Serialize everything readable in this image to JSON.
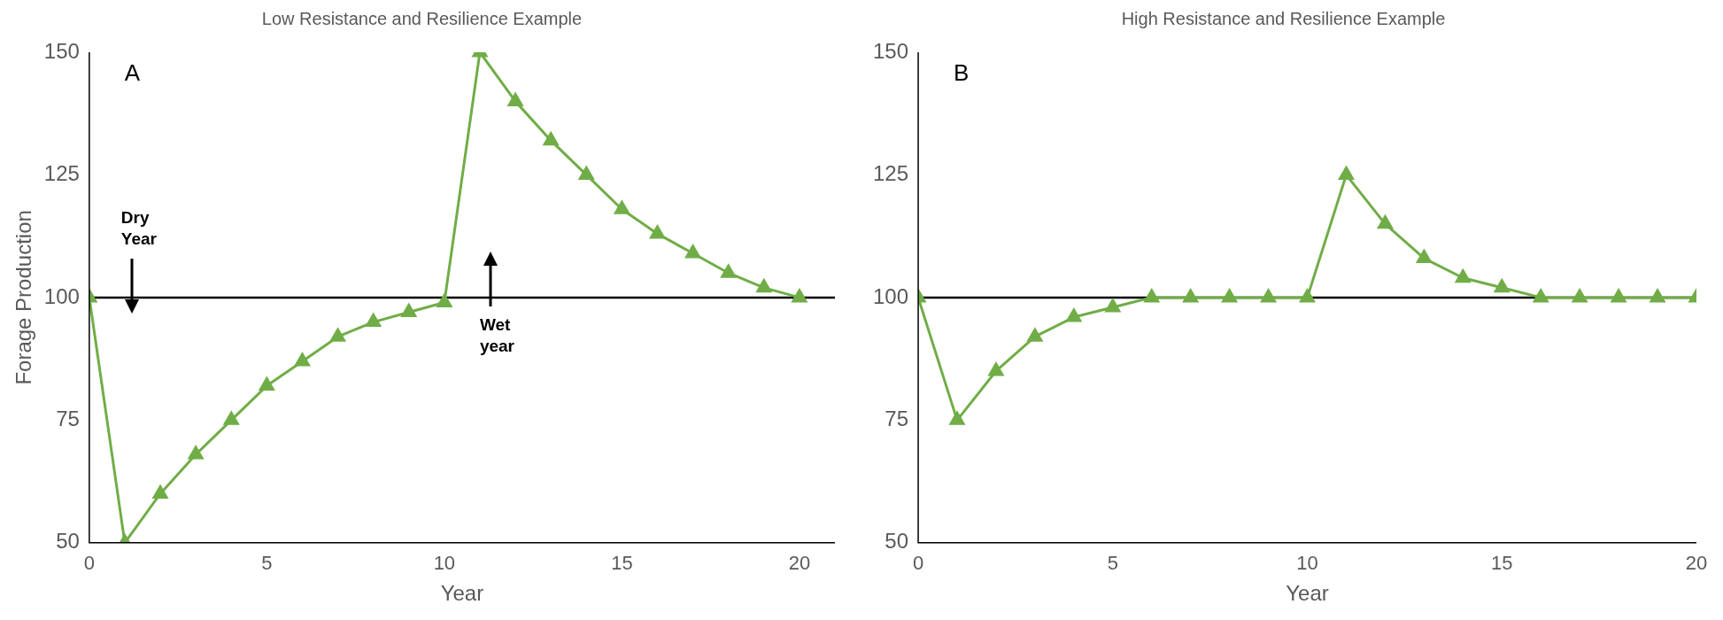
{
  "chart_data": [
    {
      "type": "line",
      "title": "Low Resistance and Resilience Example",
      "xlabel": "Year",
      "ylabel": "Forage Production",
      "x": [
        0,
        1,
        2,
        3,
        4,
        5,
        6,
        7,
        8,
        9,
        10,
        11,
        12,
        13,
        14,
        15,
        16,
        17,
        18,
        19,
        20
      ],
      "series": [
        {
          "color": "#70ad47",
          "values": [
            100,
            50,
            60,
            68,
            75,
            82,
            87,
            92,
            95,
            97,
            99,
            150,
            140,
            132,
            125,
            118,
            113,
            109,
            105,
            102,
            100
          ]
        }
      ],
      "xlim": [
        0,
        21
      ],
      "xticks": [
        0,
        5,
        10,
        15,
        20
      ],
      "ylim": [
        50,
        150
      ],
      "yticks": [
        50,
        75,
        100,
        125,
        150
      ],
      "ref_lines": [
        {
          "axis": "y",
          "value": 100,
          "color": "#000000"
        }
      ],
      "annotations": [
        "A",
        "Dry Year",
        "Wet year"
      ],
      "marker": "triangle",
      "grid": false,
      "legend": false
    },
    {
      "type": "line",
      "title": "High Resistance and Resilience Example",
      "xlabel": "Year",
      "x": [
        0,
        1,
        2,
        3,
        4,
        5,
        6,
        7,
        8,
        9,
        10,
        11,
        12,
        13,
        14,
        15,
        16,
        17,
        18,
        19,
        20
      ],
      "series": [
        {
          "color": "#70ad47",
          "values": [
            100,
            75,
            85,
            92,
            96,
            98,
            100,
            100,
            100,
            100,
            100,
            125,
            115,
            108,
            104,
            102,
            100,
            100,
            100,
            100,
            100
          ]
        }
      ],
      "xlim": [
        0,
        20
      ],
      "xticks": [
        0,
        5,
        10,
        15,
        20
      ],
      "ylim": [
        50,
        150
      ],
      "yticks": [
        50,
        75,
        100,
        125,
        150
      ],
      "ref_lines": [
        {
          "axis": "y",
          "value": 100,
          "color": "#000000"
        }
      ],
      "annotations": [
        "B"
      ],
      "marker": "triangle",
      "grid": false,
      "legend": false
    }
  ]
}
